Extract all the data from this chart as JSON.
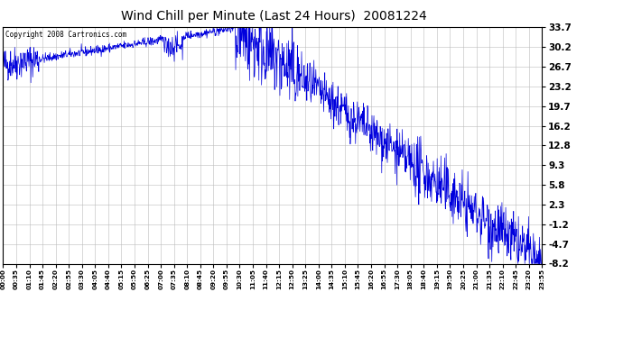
{
  "title": "Wind Chill per Minute (Last 24 Hours)  20081224",
  "copyright_text": "Copyright 2008 Cartronics.com",
  "line_color": "#0000dd",
  "bg_color": "#ffffff",
  "grid_color": "#bbbbbb",
  "yticks": [
    33.7,
    30.2,
    26.7,
    23.2,
    19.7,
    16.2,
    12.8,
    9.3,
    5.8,
    2.3,
    -1.2,
    -4.7,
    -8.2
  ],
  "ymin": -8.2,
  "ymax": 33.7,
  "xtick_labels": [
    "00:00",
    "00:35",
    "01:10",
    "01:45",
    "02:20",
    "02:55",
    "03:30",
    "04:05",
    "04:40",
    "05:15",
    "05:50",
    "06:25",
    "07:00",
    "07:35",
    "08:10",
    "08:45",
    "09:20",
    "09:55",
    "10:30",
    "11:05",
    "11:40",
    "12:15",
    "12:50",
    "13:25",
    "14:00",
    "14:35",
    "15:10",
    "15:45",
    "16:20",
    "16:55",
    "17:30",
    "18:05",
    "18:40",
    "19:15",
    "19:50",
    "20:25",
    "21:00",
    "21:35",
    "22:10",
    "22:45",
    "23:20",
    "23:55"
  ],
  "num_minutes": 1440,
  "figwidth": 6.9,
  "figheight": 3.75,
  "dpi": 100
}
